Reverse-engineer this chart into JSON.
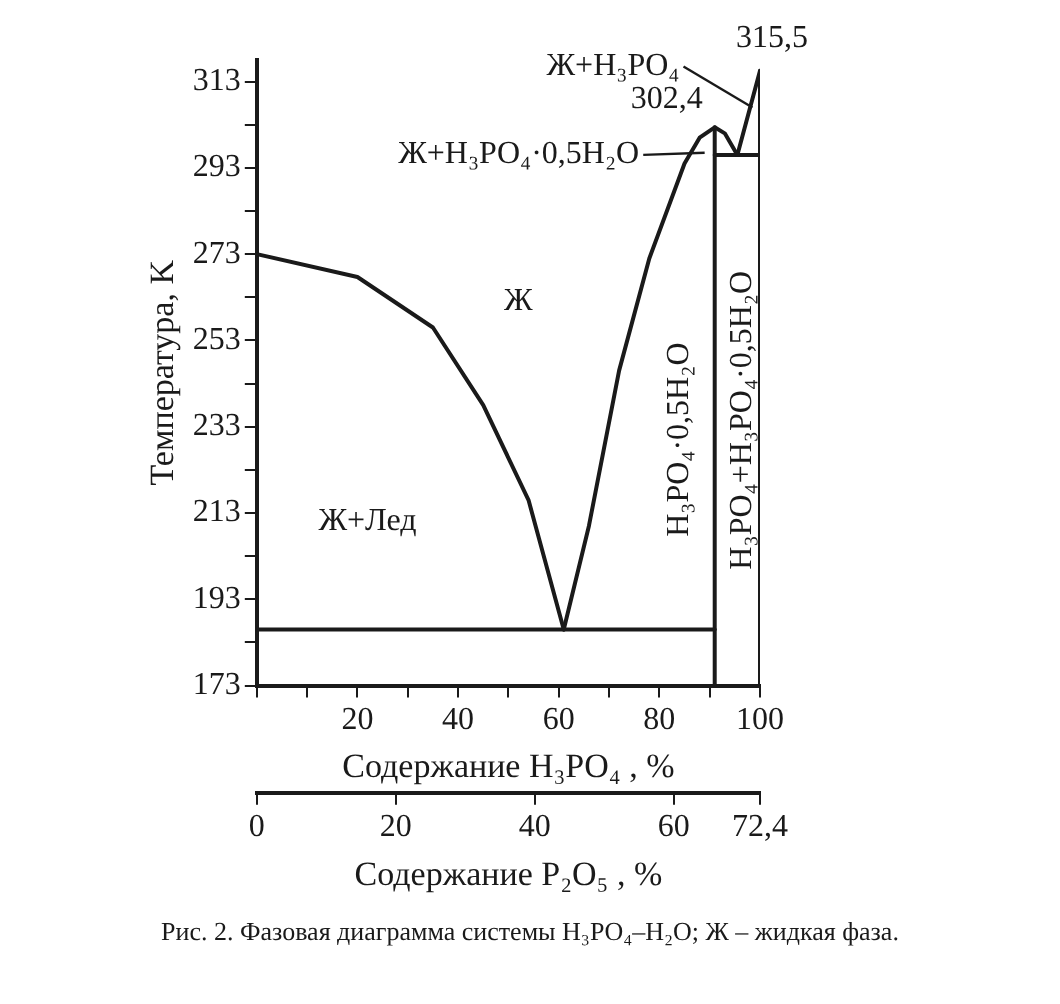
{
  "chart_data": {
    "type": "line",
    "ylabel": "Температура, K",
    "xlabel": "Содержание H₃PO₄ , %",
    "x2label": "Содержание P₂O₅ , %",
    "xlim": [
      0,
      100
    ],
    "xticks": [
      {
        "value": 0,
        "label": null
      },
      {
        "value": 10,
        "label": null
      },
      20,
      {
        "value": 30,
        "label": null
      },
      40,
      {
        "value": 50,
        "label": null
      },
      60,
      {
        "value": 70,
        "label": null
      },
      80,
      {
        "value": 90,
        "label": null
      },
      100
    ],
    "x2lim": [
      0,
      72.4
    ],
    "x2ticks": [
      0,
      20,
      40,
      60,
      {
        "value": 72.4,
        "label": "72,4"
      }
    ],
    "ylim": [
      173,
      318
    ],
    "yticks": [
      173,
      {
        "value": 183,
        "label": null
      },
      193,
      {
        "value": 203,
        "label": null
      },
      213,
      {
        "value": 223,
        "label": null
      },
      233,
      {
        "value": 243,
        "label": null
      },
      253,
      {
        "value": 263,
        "label": null
      },
      273,
      {
        "value": 283,
        "label": null
      },
      293,
      {
        "value": 303,
        "label": null
      },
      313
    ],
    "grid": false,
    "legend": false,
    "marker": "none",
    "line_style": "solid",
    "series": [
      {
        "color": "#1a1a1a",
        "x": [
          0,
          20,
          35,
          45,
          54,
          61
        ],
        "values": [
          273,
          267.7,
          256,
          238,
          216,
          186
        ]
      },
      {
        "color": "#1a1a1a",
        "x": [
          61,
          66,
          72,
          78,
          85,
          88,
          91,
          93,
          95.5
        ],
        "values": [
          186,
          210,
          246,
          272,
          294,
          300,
          302.4,
          301,
          296
        ]
      },
      {
        "color": "#1a1a1a",
        "x": [
          95.5,
          100
        ],
        "values": [
          296,
          315.5
        ]
      },
      {
        "color": "#1a1a1a",
        "x": [
          0,
          91
        ],
        "values": [
          186,
          186
        ]
      },
      {
        "color": "#1a1a1a",
        "x": [
          91,
          91
        ],
        "values": [
          173,
          302.4
        ]
      },
      {
        "color": "#1a1a1a",
        "x": [
          91,
          100
        ],
        "values": [
          296,
          296
        ]
      },
      {
        "color": "#1a1a1a",
        "x": [
          100,
          100
        ],
        "values": [
          173,
          315.5
        ]
      }
    ],
    "annotations": [
      "Рис. 2. Фазовая диаграмма системы H₃PO₄–H₂O; Ж – жидкая фаза.",
      "Ж",
      "Ж+Лед",
      {
        "text": "Ж+H₃PO₄·0,5H₂O",
        "x": 89,
        "y": 296.5
      },
      {
        "text": "Ж+H₃PO₄",
        "x": 98.5,
        "y": 307
      },
      {
        "text": "302,4",
        "x": 91,
        "y": 302.4
      },
      {
        "text": "315,5",
        "x": 100,
        "y": 315.5
      },
      "H₃PO₄·0,5H₂O",
      "H₃PO₄+H₃PO₄·0,5H₂O"
    ]
  }
}
